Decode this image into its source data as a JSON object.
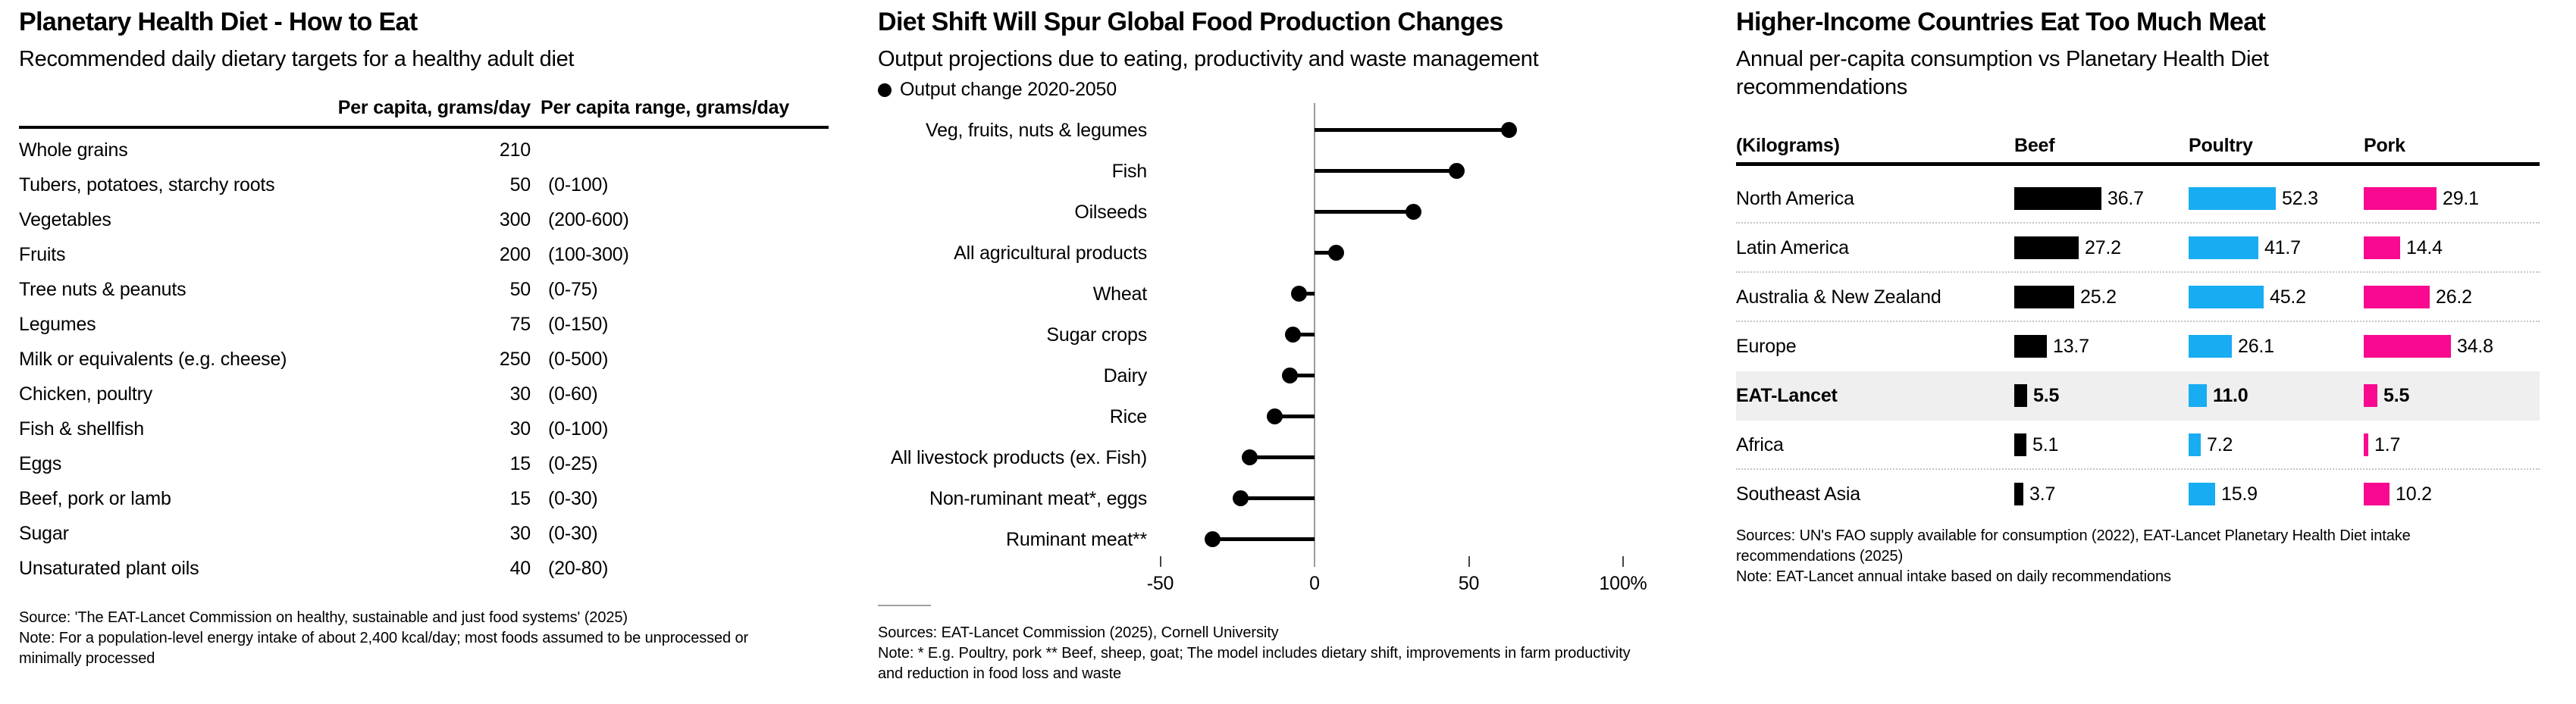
{
  "chart_data": [
    {
      "id": "diet_table",
      "type": "table",
      "title": "Planetary Health Diet - How to Eat",
      "subtitle": "Recommended daily dietary targets for a healthy adult diet",
      "col_value_header": "Per capita, grams/day",
      "col_range_header": "Per capita range, grams/day",
      "rows": [
        {
          "label": "Whole grains",
          "value": "210",
          "range": ""
        },
        {
          "label": "Tubers, potatoes, starchy roots",
          "value": "50",
          "range": "(0-100)"
        },
        {
          "label": "Vegetables",
          "value": "300",
          "range": "(200-600)"
        },
        {
          "label": "Fruits",
          "value": "200",
          "range": "(100-300)"
        },
        {
          "label": "Tree nuts & peanuts",
          "value": "50",
          "range": "(0-75)"
        },
        {
          "label": "Legumes",
          "value": "75",
          "range": "(0-150)"
        },
        {
          "label": "Milk or equivalents (e.g. cheese)",
          "value": "250",
          "range": "(0-500)"
        },
        {
          "label": "Chicken, poultry",
          "value": "30",
          "range": "(0-60)"
        },
        {
          "label": "Fish & shellfish",
          "value": "30",
          "range": "(0-100)"
        },
        {
          "label": "Eggs",
          "value": "15",
          "range": "(0-25)"
        },
        {
          "label": "Beef, pork or lamb",
          "value": "15",
          "range": "(0-30)"
        },
        {
          "label": "Sugar",
          "value": "30",
          "range": "(0-30)"
        },
        {
          "label": "Unsaturated plant oils",
          "value": "40",
          "range": "(20-80)"
        }
      ],
      "source": "Source: 'The EAT-Lancet Commission on healthy, sustainable and just food systems' (2025)",
      "note": "Note: For a population-level energy intake of about 2,400 kcal/day; most foods assumed to be unprocessed or minimally processed"
    },
    {
      "id": "production_chart",
      "type": "bar",
      "orientation": "horizontal-lollipop",
      "title": "Diet Shift Will Spur Global Food Production Changes",
      "subtitle": "Output projections due to eating, productivity and waste management",
      "legend": "Output change 2020-2050",
      "categories": [
        "Veg, fruits, nuts & legumes",
        "Fish",
        "Oilseeds",
        "All agricultural products",
        "Wheat",
        "Sugar crops",
        "Dairy",
        "Rice",
        "All livestock products (ex. Fish)",
        "Non-ruminant meat*, eggs",
        "Ruminant meat**"
      ],
      "values": [
        63,
        46,
        32,
        7,
        -5,
        -7,
        -8,
        -13,
        -21,
        -24,
        -33
      ],
      "unit": "%",
      "xlim": [
        -50,
        113
      ],
      "xticks": [
        {
          "value": -50,
          "label": "-50"
        },
        {
          "value": 0,
          "label": "0"
        },
        {
          "value": 50,
          "label": "50"
        },
        {
          "value": 100,
          "label": "100%"
        }
      ],
      "dot_color": "#000000",
      "sources": "Sources: EAT-Lancet Commission (2025), Cornell University",
      "note": "Note: * E.g. Poultry, pork ** Beef, sheep, goat; The model includes dietary shift, improvements in farm productivity and reduction in food loss and waste"
    },
    {
      "id": "meat_chart",
      "type": "bar",
      "orientation": "horizontal-grouped",
      "title": "Higher-Income Countries Eat Too Much Meat",
      "subtitle": "Annual per-capita consumption vs Planetary Health Diet recommendations",
      "unit_header": "(Kilograms)",
      "series": [
        {
          "name": "Beef",
          "color": "#000000",
          "axis_max": 36.7
        },
        {
          "name": "Poultry",
          "color": "#18ACF2",
          "axis_max": 52.3
        },
        {
          "name": "Pork",
          "color": "#F8098F",
          "axis_max": 34.8
        }
      ],
      "rows": [
        {
          "region": "North America",
          "values": [
            36.7,
            52.3,
            29.1
          ],
          "labels": [
            "36.7",
            "52.3",
            "29.1"
          ],
          "highlight": false
        },
        {
          "region": "Latin America",
          "values": [
            27.2,
            41.7,
            14.4
          ],
          "labels": [
            "27.2",
            "41.7",
            "14.4"
          ],
          "highlight": false
        },
        {
          "region": "Australia & New Zealand",
          "values": [
            25.2,
            45.2,
            26.2
          ],
          "labels": [
            "25.2",
            "45.2",
            "26.2"
          ],
          "highlight": false
        },
        {
          "region": "Europe",
          "values": [
            13.7,
            26.1,
            34.8
          ],
          "labels": [
            "13.7",
            "26.1",
            "34.8"
          ],
          "highlight": false
        },
        {
          "region": "EAT-Lancet",
          "values": [
            5.5,
            11.0,
            5.5
          ],
          "labels": [
            "5.5",
            "11.0",
            "5.5"
          ],
          "highlight": true
        },
        {
          "region": "Africa",
          "values": [
            5.1,
            7.2,
            1.7
          ],
          "labels": [
            "5.1",
            "7.2",
            "1.7"
          ],
          "highlight": false
        },
        {
          "region": "Southeast Asia",
          "values": [
            3.7,
            15.9,
            10.2
          ],
          "labels": [
            "3.7",
            "15.9",
            "10.2"
          ],
          "highlight": false
        }
      ],
      "highlight_color": "#efefef",
      "sources": "Sources: UN's FAO supply available for consumption (2022), EAT-Lancet Planetary Health Diet intake recommendations (2025)",
      "note": "Note: EAT-Lancet annual intake based on daily recommendations"
    }
  ]
}
